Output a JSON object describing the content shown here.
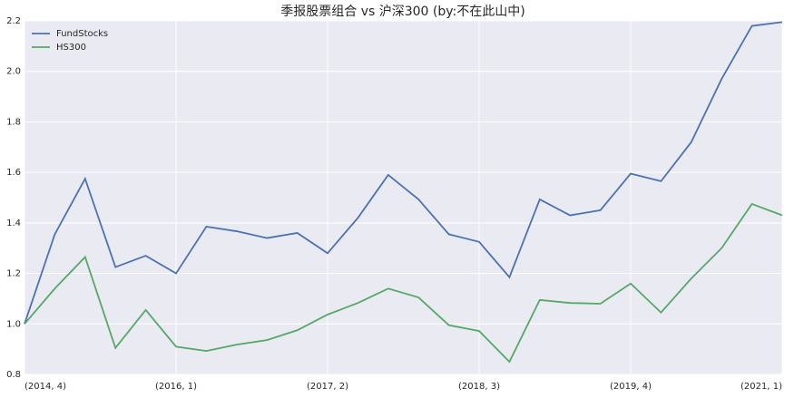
{
  "chart_data": {
    "type": "line",
    "title": "季报股票组合 vs 沪深300  (by:不在此山中)",
    "categories": [
      "(2014, 4)",
      null,
      null,
      null,
      null,
      "(2016, 1)",
      null,
      null,
      null,
      null,
      "(2017, 2)",
      null,
      null,
      null,
      null,
      "(2018, 3)",
      null,
      null,
      null,
      null,
      "(2019, 4)",
      null,
      null,
      null,
      null,
      "(2021, 1)"
    ],
    "series": [
      {
        "name": "FundStocks",
        "color": "#4c72b0",
        "values": [
          1.0,
          1.355,
          1.575,
          1.225,
          1.27,
          1.2,
          1.385,
          1.367,
          1.34,
          1.36,
          1.28,
          1.42,
          1.59,
          1.493,
          1.355,
          1.325,
          1.185,
          1.493,
          1.43,
          1.45,
          1.595,
          1.565,
          1.72,
          1.97,
          2.18,
          2.195
        ]
      },
      {
        "name": "HS300",
        "color": "#55a868",
        "values": [
          1.0,
          1.14,
          1.265,
          0.905,
          1.055,
          0.91,
          0.893,
          0.918,
          0.936,
          0.975,
          1.037,
          1.083,
          1.14,
          1.105,
          0.995,
          0.972,
          0.85,
          1.095,
          1.083,
          1.08,
          1.16,
          1.045,
          1.18,
          1.3,
          1.475,
          1.43
        ]
      }
    ],
    "ylim": [
      0.8,
      2.2
    ],
    "yticks": [
      0.8,
      {
        "value": 1.0,
        "label": "1.0"
      },
      1.2,
      1.4,
      1.6,
      1.8,
      {
        "value": 2.0,
        "label": "2.0"
      },
      2.2
    ],
    "grid": true,
    "legend": "upper left"
  }
}
